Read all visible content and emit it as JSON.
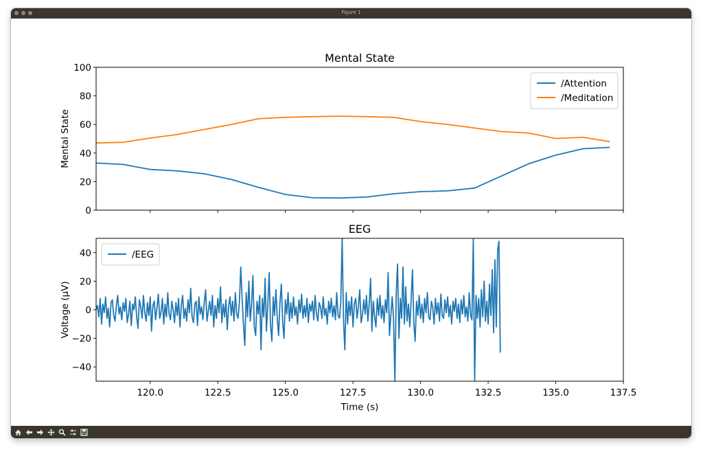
{
  "window": {
    "title": "Figure 1"
  },
  "toolbar": {
    "buttons": [
      "home-icon",
      "back-arrow-icon",
      "forward-arrow-icon",
      "pan-icon",
      "zoom-icon",
      "configure-subplots-icon",
      "save-icon"
    ]
  },
  "chart_data": [
    {
      "type": "line",
      "title": "Mental State",
      "xlabel": "",
      "ylabel": "Mental State",
      "xlim": [
        118.0,
        137.5
      ],
      "ylim": [
        0,
        100
      ],
      "yticks": [
        0,
        20,
        40,
        60,
        80,
        100
      ],
      "xticks": [
        120.0,
        122.5,
        125.0,
        127.5,
        130.0,
        132.5,
        135.0,
        137.5
      ],
      "show_xtick_labels": false,
      "legend_position": "upper right",
      "series": [
        {
          "name": "/Attention",
          "color": "#1f77b4",
          "x": [
            118,
            119,
            120,
            121,
            122,
            123,
            124,
            125,
            126,
            127,
            128,
            129,
            130,
            131,
            132,
            133,
            134,
            135,
            136,
            137
          ],
          "y": [
            33,
            32,
            28.5,
            27.5,
            25.5,
            21.5,
            16,
            11,
            8.7,
            8.5,
            9.2,
            11.5,
            13,
            13.5,
            15.5,
            24,
            32.5,
            38.5,
            43,
            44
          ]
        },
        {
          "name": "/Meditation",
          "color": "#ff7f0e",
          "x": [
            118,
            119,
            120,
            121,
            122,
            123,
            124,
            125,
            126,
            127,
            128,
            129,
            130,
            131,
            132,
            133,
            134,
            135,
            136,
            137
          ],
          "y": [
            47,
            47.5,
            50.5,
            53,
            56.5,
            60,
            64,
            65,
            65.5,
            65.8,
            65.5,
            65,
            62,
            60,
            57.5,
            55,
            54,
            50.2,
            51,
            48
          ]
        }
      ]
    },
    {
      "type": "line",
      "title": "EEG",
      "xlabel": "Time (s)",
      "ylabel": "Voltage (µV)",
      "xlim": [
        118.0,
        137.5
      ],
      "ylim": [
        -50,
        50
      ],
      "yticks": [
        -40,
        -20,
        0,
        20,
        40
      ],
      "xticks": [
        120.0,
        122.5,
        125.0,
        127.5,
        130.0,
        132.5,
        135.0,
        137.5
      ],
      "xtick_labels": [
        "120.0",
        "122.5",
        "125.0",
        "127.5",
        "130.0",
        "132.5",
        "135.0",
        "137.5"
      ],
      "legend_position": "upper left",
      "series": [
        {
          "name": "/EEG",
          "color": "#1f77b4",
          "sample_interval_s": 0.05,
          "x_start": 118.0,
          "y": [
            0,
            3,
            -5,
            8,
            -10,
            4,
            -2,
            9,
            -6,
            1,
            -12,
            5,
            7,
            -4,
            -8,
            3,
            10,
            -3,
            2,
            -7,
            5,
            -1,
            8,
            -9,
            -3,
            6,
            -11,
            4,
            0,
            9,
            -5,
            -13,
            7,
            2,
            -6,
            10,
            -2,
            -8,
            5,
            -4,
            9,
            -15,
            3,
            6,
            -7,
            1,
            11,
            -6,
            -2,
            8,
            -10,
            4,
            -5,
            12,
            -3,
            -7,
            6,
            0,
            -9,
            5,
            -4,
            8,
            -12,
            3,
            10,
            -6,
            1,
            -8,
            7,
            -2,
            15,
            -5,
            -9,
            4,
            6,
            -11,
            9,
            -3,
            2,
            -7,
            5,
            14,
            -8,
            -1,
            6,
            -4,
            10,
            -12,
            3,
            -6,
            8,
            -2,
            16,
            -9,
            4,
            -5,
            7,
            -14,
            2,
            9,
            -4,
            6,
            -8,
            12,
            -3,
            -6,
            5,
            30,
            8,
            -10,
            -25,
            12,
            -5,
            20,
            -8,
            4,
            24,
            -12,
            -18,
            6,
            -3,
            10,
            -28,
            8,
            -5,
            22,
            -15,
            4,
            26,
            -10,
            -22,
            9,
            -4,
            14,
            -6,
            -18,
            5,
            18,
            -9,
            -20,
            7,
            -3,
            12,
            -8,
            5,
            -6,
            9,
            -4,
            2,
            -10,
            7,
            -2,
            11,
            -6,
            3,
            -5,
            8,
            -9,
            4,
            -1,
            6,
            -7,
            10,
            -3,
            -8,
            5,
            2,
            -6,
            9,
            -4,
            1,
            -10,
            6,
            -2,
            8,
            -5,
            3,
            -7,
            12,
            -4,
            -6,
            5,
            50,
            -8,
            -28,
            12,
            -10,
            6,
            -4,
            9,
            -12,
            4,
            8,
            -6,
            2,
            14,
            -9,
            -4,
            7,
            -3,
            10,
            -8,
            4,
            22,
            -15,
            6,
            -5,
            -12,
            8,
            -4,
            10,
            -6,
            3,
            -9,
            7,
            -2,
            26,
            -18,
            -4,
            9,
            -6,
            -50,
            12,
            32,
            -20,
            8,
            -6,
            30,
            -10,
            16,
            -8,
            4,
            -12,
            6,
            28,
            -10,
            -22,
            6,
            -4,
            10,
            -6,
            4,
            -9,
            8,
            -2,
            12,
            -5,
            -7,
            6,
            2,
            -10,
            8,
            -3,
            5,
            -8,
            11,
            -4,
            -6,
            7,
            -2,
            9,
            -5,
            3,
            -10,
            6,
            -1,
            8,
            -6,
            4,
            -9,
            7,
            -3,
            10,
            -5,
            2,
            -8,
            12,
            -4,
            -7,
            50,
            -50,
            10,
            -6,
            8,
            -12,
            14,
            -5,
            20,
            -8,
            6,
            -10,
            18,
            -4,
            28,
            -16,
            35,
            -12,
            42,
            48,
            -30
          ]
        }
      ]
    }
  ]
}
